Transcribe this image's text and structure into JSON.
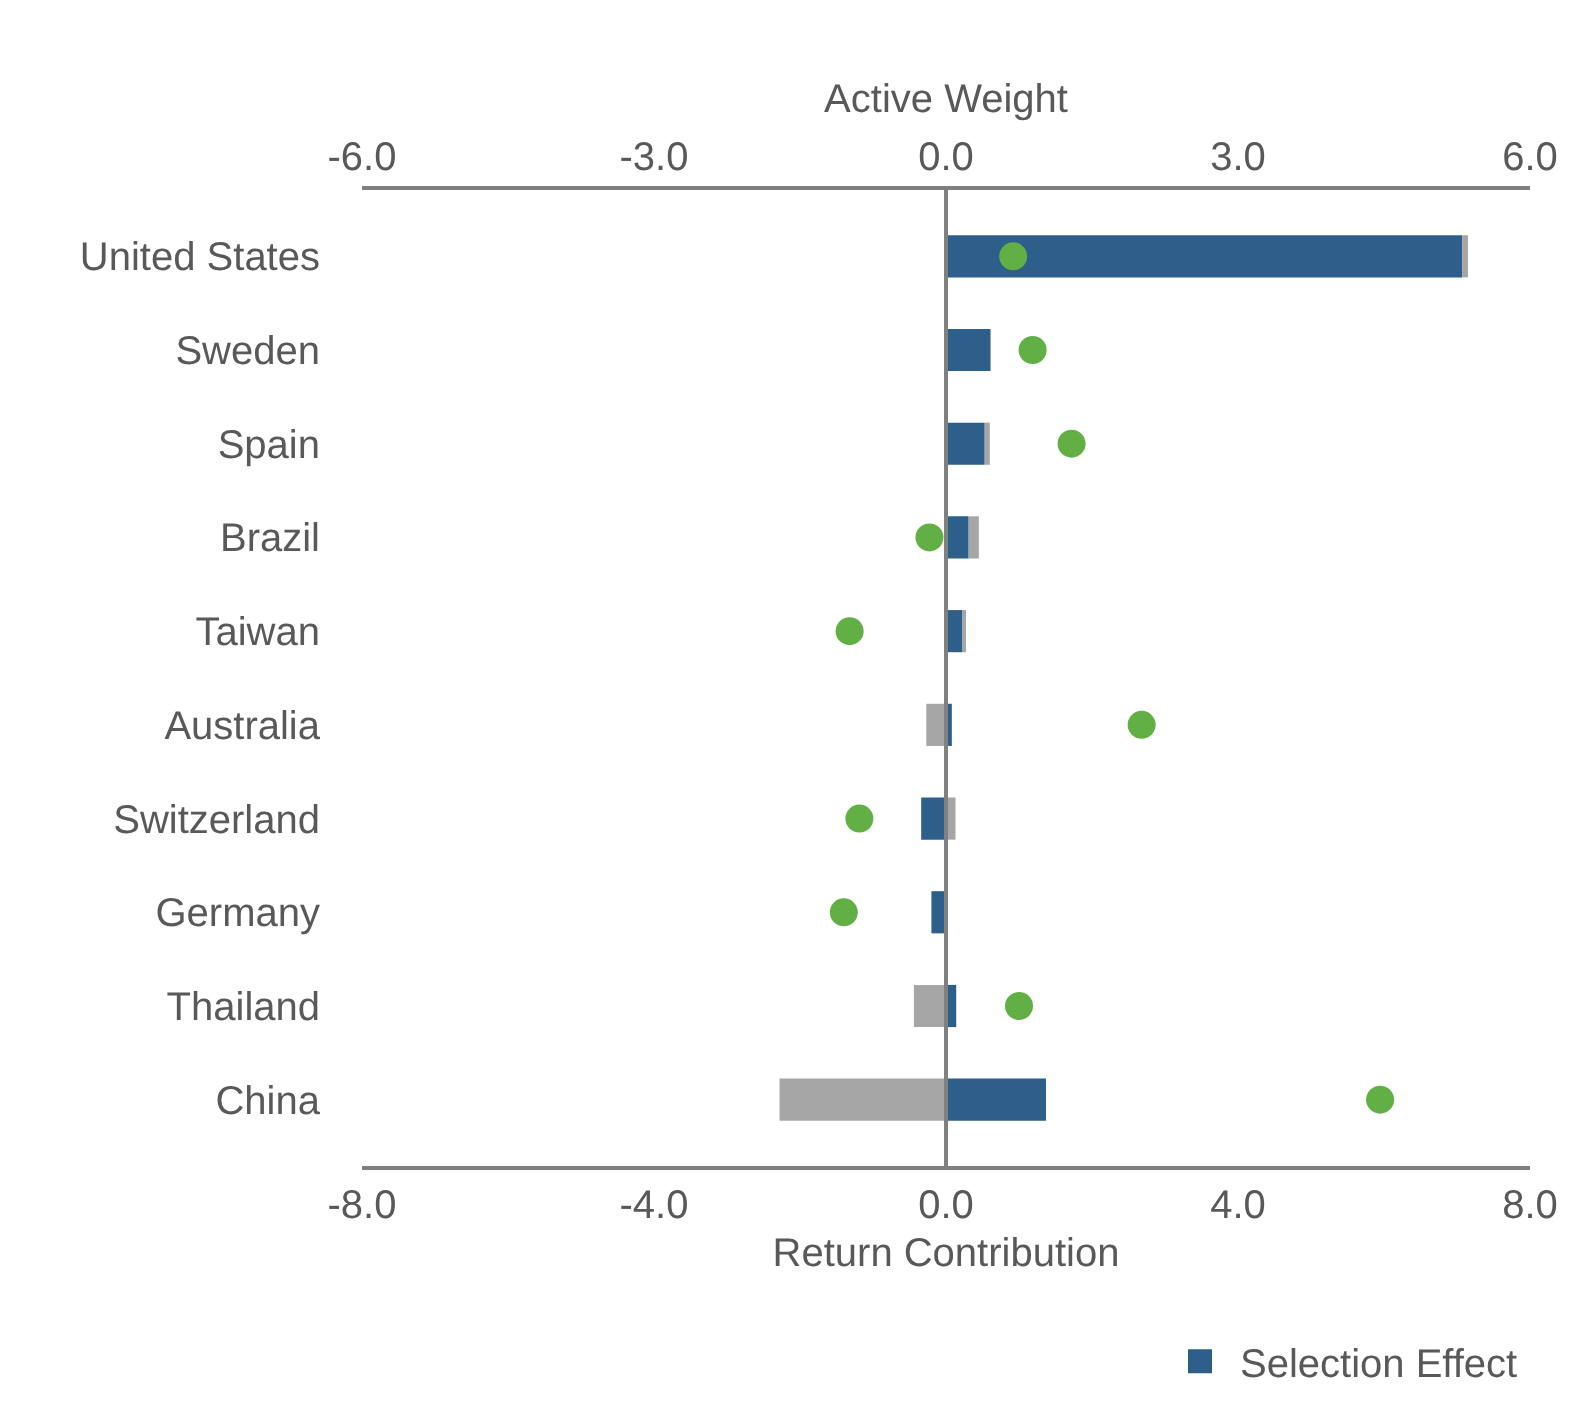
{
  "chart_data": {
    "type": "bar",
    "orientation": "horizontal",
    "xlabel": "Return Contribution",
    "x2label": "Active Weight",
    "categories": [
      "United States",
      "Sweden",
      "Spain",
      "Brazil",
      "Taiwan",
      "Australia",
      "Switzerland",
      "Germany",
      "Thailand",
      "China"
    ],
    "series": [
      {
        "name": "Selection Effect",
        "color": "#2e5f8a",
        "values": [
          7.07,
          0.61,
          0.53,
          0.31,
          0.22,
          0.08,
          -0.34,
          -0.2,
          0.14,
          1.37
        ]
      },
      {
        "color": "#a6a6a6",
        "values": [
          0.08,
          null,
          0.07,
          0.14,
          0.03,
          -0.27,
          0.13,
          null,
          -0.44,
          -2.28
        ]
      },
      {
        "type": "scatter",
        "axis": "x2",
        "marker": "circle",
        "color": "#62b045",
        "values": [
          0.69,
          0.89,
          1.29,
          -0.17,
          -0.99,
          2.01,
          -0.89,
          -1.05,
          0.75,
          4.46
        ]
      }
    ],
    "xlim": [
      -8,
      8
    ],
    "xticks": [
      {
        "value": -8,
        "label": "-8.0"
      },
      {
        "value": -4,
        "label": "-4.0"
      },
      {
        "value": 0,
        "label": "0.0"
      },
      {
        "value": 4,
        "label": "4.0"
      },
      {
        "value": 8,
        "label": "8.0"
      }
    ],
    "x2lim": [
      -6,
      6
    ],
    "x2ticks": [
      {
        "value": -6,
        "label": "-6.0"
      },
      {
        "value": -3,
        "label": "-3.0"
      },
      {
        "value": 0,
        "label": "0.0"
      },
      {
        "value": 3,
        "label": "3.0"
      },
      {
        "value": 6,
        "label": "6.0"
      }
    ],
    "stacked": true,
    "ref_lines": [
      {
        "axis": "x",
        "value": 0,
        "color": "#808080"
      }
    ],
    "grid": false,
    "legend": "bottom right"
  }
}
